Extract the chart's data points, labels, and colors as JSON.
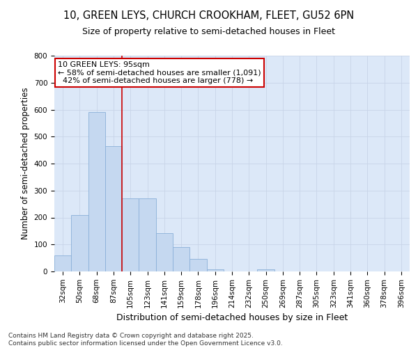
{
  "title_line1": "10, GREEN LEYS, CHURCH CROOKHAM, FLEET, GU52 6PN",
  "title_line2": "Size of property relative to semi-detached houses in Fleet",
  "xlabel": "Distribution of semi-detached houses by size in Fleet",
  "ylabel": "Number of semi-detached properties",
  "categories": [
    "32sqm",
    "50sqm",
    "68sqm",
    "87sqm",
    "105sqm",
    "123sqm",
    "141sqm",
    "159sqm",
    "178sqm",
    "196sqm",
    "214sqm",
    "232sqm",
    "250sqm",
    "269sqm",
    "287sqm",
    "305sqm",
    "323sqm",
    "341sqm",
    "360sqm",
    "378sqm",
    "396sqm"
  ],
  "values": [
    60,
    210,
    592,
    465,
    270,
    270,
    143,
    90,
    47,
    8,
    0,
    0,
    7,
    0,
    0,
    0,
    0,
    0,
    0,
    0,
    0
  ],
  "bar_color": "#c5d8f0",
  "bar_edge_color": "#8ab0d8",
  "grid_color": "#c8d4e8",
  "background_color": "#dce8f8",
  "annotation_line1": "10 GREEN LEYS: 95sqm",
  "annotation_line2": "← 58% of semi-detached houses are smaller (1,091)",
  "annotation_line3": "  42% of semi-detached houses are larger (778) →",
  "red_line_x": 3.5,
  "ylim": [
    0,
    800
  ],
  "yticks": [
    0,
    100,
    200,
    300,
    400,
    500,
    600,
    700,
    800
  ],
  "footnote_line1": "Contains HM Land Registry data © Crown copyright and database right 2025.",
  "footnote_line2": "Contains public sector information licensed under the Open Government Licence v3.0.",
  "title_fontsize": 10.5,
  "subtitle_fontsize": 9,
  "ylabel_fontsize": 8.5,
  "xlabel_fontsize": 9,
  "tick_fontsize": 7.5,
  "footnote_fontsize": 6.5,
  "annot_fontsize": 8
}
